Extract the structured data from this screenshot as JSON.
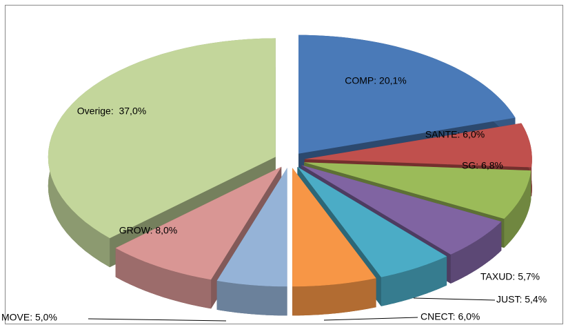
{
  "chart_data": {
    "type": "pie",
    "values": [
      20.1,
      6.0,
      6.8,
      5.7,
      5.4,
      6.0,
      5.0,
      8.0,
      37.0
    ],
    "value_labels": [
      "COMP: 20,1%",
      "SANTE: 6,0%",
      "SG: 6,8%",
      "TAXUD: 5,7%",
      "JUST: 5,4%",
      "CNECT: 6,0%",
      "MOVE: 5,0%",
      "GROW: 8,0%",
      "Overige:  37,0%"
    ],
    "colors": [
      "#4a7ab8",
      "#c0504d",
      "#9bbb59",
      "#8064a2",
      "#4bacc6",
      "#f79646",
      "#95b3d7",
      "#d99694",
      "#c3d69b"
    ]
  }
}
